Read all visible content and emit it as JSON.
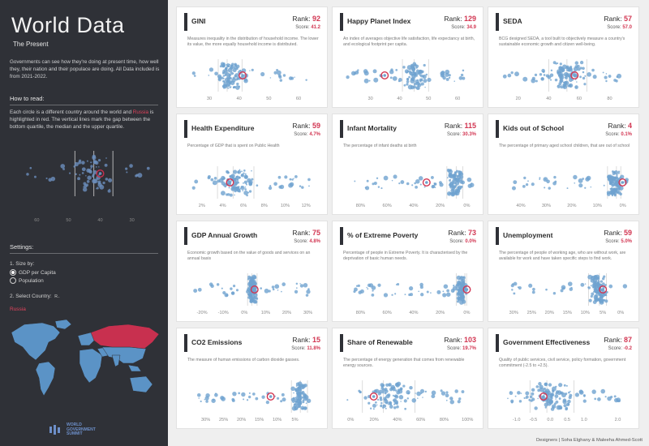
{
  "sidebar": {
    "title": "World Data",
    "subtitle": "The Present",
    "intro": "Governments can see how they're doing at present time, how well they, their nation and their populace are doing. All Data included is from 2021-2022.",
    "how_to_read_heading": "How to read:",
    "how_to_read_before": "Each circle is a different country around the world and ",
    "how_to_read_highlight": "Russia",
    "how_to_read_after": " is highlighted in red. The vertical lines mark the gap between the bottom quartile, the median and the upper quartile.",
    "legend_ticks": [
      "60",
      "50",
      "40",
      "30"
    ],
    "settings_heading": "Settings:",
    "size_by_label": "1. Size by:",
    "size_options": [
      {
        "label": "GDP per Capita",
        "selected": true
      },
      {
        "label": "Population",
        "selected": false
      }
    ],
    "select_country_label": "2. Select Country:",
    "select_country_glyph": "R..",
    "selected_country": "Russia",
    "logo_lines": [
      "WORLD",
      "GOVERNMENT",
      "SUMMIT"
    ]
  },
  "colors": {
    "dot": "#6fa3cf",
    "highlight": "#d23652",
    "map_land": "#5b93c6",
    "map_highlight": "#c8304f",
    "sidebar_bg": "#2f3137"
  },
  "size_icon": "circle-marker-icon",
  "credits": "Designers | Soha Elghany & Maleeha Ahmed-Scott",
  "cards": [
    {
      "title": "GINI",
      "rank_label": "Rank:",
      "rank": "92",
      "score_label": "Score:",
      "score": "41.2",
      "desc": "Measures inequality in the distribution of household income. The lower its value, the more equally household income is distributed.",
      "ticks": [
        "30",
        "40",
        "50",
        "60"
      ]
    },
    {
      "title": "Happy Planet Index",
      "rank_label": "Rank:",
      "rank": "129",
      "score_label": "Score:",
      "score": "34.9",
      "desc": "An index of averages objective life satisfaction, life expectancy at birth, and ecological footprint per capita.",
      "ticks": [
        "30",
        "40",
        "50",
        "60"
      ]
    },
    {
      "title": "SEDA",
      "rank_label": "Rank:",
      "rank": "57",
      "score_label": "Score:",
      "score": "57.0",
      "desc": "BCG designed SEDA, a tool built to objectively measure a country's sustainable economic growth and citizen well-being.",
      "ticks": [
        "20",
        "40",
        "60",
        "80"
      ]
    },
    {
      "title": "Health Expenditure",
      "rank_label": "Rank:",
      "rank": "59",
      "score_label": "Score:",
      "score": "4.7%",
      "desc": "Percentage of GDP that is spent on Public Health",
      "ticks": [
        "2%",
        "4%",
        "6%",
        "8%",
        "10%",
        "12%"
      ]
    },
    {
      "title": "Infant Mortality",
      "rank_label": "Rank:",
      "rank": "115",
      "score_label": "Score:",
      "score": "30.3%",
      "desc": "The percentage of infant deaths at birth",
      "ticks": [
        "80%",
        "60%",
        "40%",
        "20%",
        "0%"
      ]
    },
    {
      "title": "Kids out of School",
      "rank_label": "Rank:",
      "rank": "4",
      "score_label": "Score:",
      "score": "0.1%",
      "desc": "The percentage of primary aged school children, that are out of school",
      "ticks": [
        "40%",
        "30%",
        "20%",
        "10%",
        "0%"
      ]
    },
    {
      "title": "GDP Annual Growth",
      "rank_label": "Rank:",
      "rank": "75",
      "score_label": "Score:",
      "score": "4.8%",
      "desc": "Economic growth based on the value of goods and services on an annual basis",
      "ticks": [
        "-20%",
        "-10%",
        "0%",
        "10%",
        "20%",
        "30%"
      ]
    },
    {
      "title": "% of Extreme Poverty",
      "rank_label": "Rank:",
      "rank": "73",
      "score_label": "Score:",
      "score": "0.0%",
      "desc": "Percentage of people in Extreme Poverty. It is characterised by the deprivation of basic human needs.",
      "ticks": [
        "80%",
        "60%",
        "40%",
        "20%",
        "0%"
      ]
    },
    {
      "title": "Unemployment",
      "rank_label": "Rank:",
      "rank": "59",
      "score_label": "Score:",
      "score": "5.0%",
      "desc": "The percentage of people of working age, who are without work, are available for work and have taken specific steps to find work.",
      "ticks": [
        "30%",
        "25%",
        "20%",
        "15%",
        "10%",
        "5%",
        "0%"
      ]
    },
    {
      "title": "CO2 Emissions",
      "rank_label": "Rank:",
      "rank": "15",
      "score_label": "Score:",
      "score": "11.8%",
      "desc": "The measure of human emissions of carbon dioxide gasses.",
      "ticks": [
        "30%",
        "25%",
        "20%",
        "15%",
        "10%",
        "5%"
      ]
    },
    {
      "title": "Share of Renewable",
      "rank_label": "Rank:",
      "rank": "103",
      "score_label": "Score:",
      "score": "19.7%",
      "desc": "The percentage of energy generation that comes from renewable energy sources.",
      "ticks": [
        "0%",
        "20%",
        "40%",
        "60%",
        "80%",
        "100%"
      ]
    },
    {
      "title": "Government Effectiveness",
      "rank_label": "Rank:",
      "rank": "87",
      "score_label": "Score:",
      "score": "-0.2",
      "desc": "Quality of public services, civil service, policy formation, government commitment (-2.5 to +2.5).",
      "ticks": [
        "-1.0",
        "-0.5",
        "0.0",
        "0.5",
        "1.0",
        "2.0"
      ]
    }
  ],
  "chart_data": [
    {
      "type": "scatter",
      "title": "GINI",
      "xlim": [
        24,
        66
      ],
      "x_ticks": [
        30,
        40,
        50,
        60
      ],
      "highlight": 41.2,
      "quartiles": [
        33,
        36,
        41
      ]
    },
    {
      "type": "scatter",
      "title": "Happy Planet Index",
      "xlim": [
        22,
        65
      ],
      "x_ticks": [
        30,
        40,
        50,
        60
      ],
      "highlight": 34.9,
      "quartiles": [
        41,
        45,
        50
      ]
    },
    {
      "type": "scatter",
      "title": "SEDA",
      "xlim": [
        10,
        92
      ],
      "x_ticks": [
        20,
        40,
        60,
        80
      ],
      "highlight": 57.0,
      "quartiles": [
        40,
        52,
        65
      ]
    },
    {
      "type": "scatter",
      "title": "Health Expenditure",
      "xlim": [
        1,
        13
      ],
      "x_ticks": [
        2,
        4,
        6,
        8,
        10,
        12
      ],
      "highlight": 4.7,
      "quartiles": [
        3.5,
        5,
        7
      ]
    },
    {
      "type": "scatter",
      "title": "Infant Mortality",
      "xlim": [
        90,
        -4
      ],
      "x_ticks": [
        80,
        60,
        40,
        20,
        0
      ],
      "highlight": 30.3,
      "quartiles": [
        15,
        8,
        3
      ]
    },
    {
      "type": "scatter",
      "title": "Kids out of School",
      "xlim": [
        47,
        -2
      ],
      "x_ticks": [
        40,
        30,
        20,
        10,
        0
      ],
      "highlight": 0.1,
      "quartiles": [
        6,
        2.5,
        0.8
      ]
    },
    {
      "type": "scatter",
      "title": "GDP Annual Growth",
      "xlim": [
        -25,
        34
      ],
      "x_ticks": [
        -20,
        -10,
        0,
        10,
        20,
        30
      ],
      "highlight": 4.8,
      "quartiles": [
        1.5,
        3.5,
        6
      ]
    },
    {
      "type": "scatter",
      "title": "% of Extreme Poverty",
      "xlim": [
        90,
        -4
      ],
      "x_ticks": [
        80,
        60,
        40,
        20,
        0
      ],
      "highlight": 0.0,
      "quartiles": [
        8,
        1.5,
        0.2
      ]
    },
    {
      "type": "scatter",
      "title": "Unemployment",
      "xlim": [
        33,
        -2
      ],
      "x_ticks": [
        30,
        25,
        20,
        15,
        10,
        5,
        0
      ],
      "highlight": 5.0,
      "quartiles": [
        9,
        6,
        4
      ]
    },
    {
      "type": "scatter",
      "title": "CO2 Emissions",
      "xlim": [
        34,
        -1
      ],
      "x_ticks": [
        30,
        25,
        20,
        15,
        10,
        5
      ],
      "highlight": 11.8,
      "quartiles": [
        6,
        3.5,
        1.5
      ]
    },
    {
      "type": "scatter",
      "title": "Share of Renewable",
      "xlim": [
        -3,
        104
      ],
      "x_ticks": [
        0,
        20,
        40,
        60,
        80,
        100
      ],
      "highlight": 19.7,
      "quartiles": [
        10,
        28,
        55
      ]
    },
    {
      "type": "scatter",
      "title": "Government Effectiveness",
      "xlim": [
        -1.4,
        2.3
      ],
      "x_ticks": [
        -1.0,
        -0.5,
        0.0,
        0.5,
        1.0,
        2.0
      ],
      "highlight": -0.2,
      "quartiles": [
        -0.6,
        -0.1,
        0.7
      ]
    }
  ]
}
